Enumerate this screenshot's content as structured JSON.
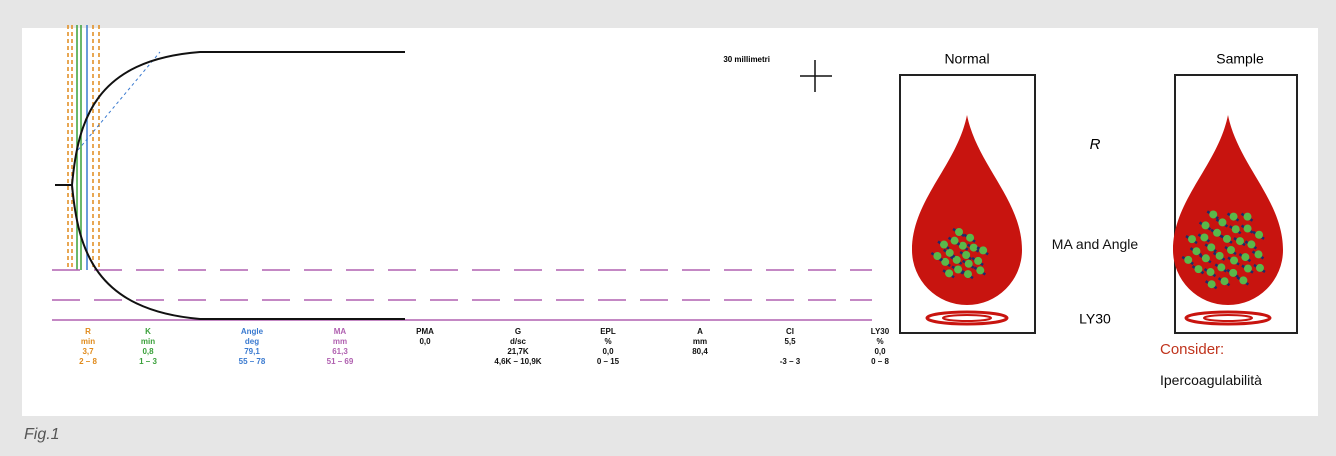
{
  "figure": {
    "caption": "Fig.1",
    "scale_label": "30 millimetri",
    "parameters": [
      {
        "name": "R",
        "unit": "min",
        "value": "3,7",
        "range": "2 – 8"
      },
      {
        "name": "K",
        "unit": "min",
        "value": "0,8",
        "range": "1 – 3"
      },
      {
        "name": "Angle",
        "unit": "deg",
        "value": "79,1",
        "range": "55 – 78"
      },
      {
        "name": "MA",
        "unit": "mm",
        "value": "61,3",
        "range": "51 – 69"
      },
      {
        "name": "PMA",
        "value": "0,0"
      },
      {
        "name": "G",
        "unit": "d/sc",
        "value": "21,7K",
        "range": "4,6K – 10,9K"
      },
      {
        "name": "EPL",
        "unit": "%",
        "value": "0,0",
        "range": "0 – 15"
      },
      {
        "name": "A",
        "unit": "mm",
        "value": "80,4"
      },
      {
        "name": "CI",
        "value": "5,5",
        "range": "-3 – 3"
      },
      {
        "name": "LY30",
        "unit": "%",
        "value": "0,0",
        "range": "0 – 8"
      }
    ],
    "panels": {
      "normal": "Normal",
      "sample": "Sample"
    },
    "legend": [
      "R",
      "MA and Angle",
      "LY30"
    ],
    "advice": {
      "heading": "Consider:",
      "text": "Ipercoagulabilità"
    }
  }
}
